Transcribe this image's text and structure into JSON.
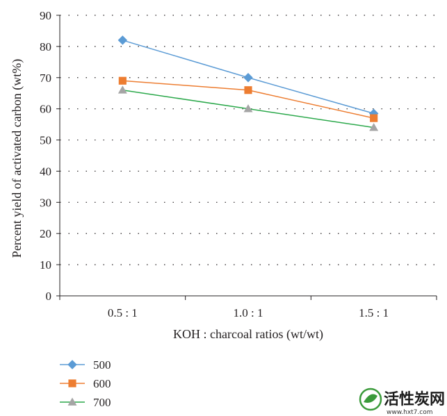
{
  "chart_data": {
    "type": "line",
    "categories": [
      "0.5 : 1",
      "1.0 : 1",
      "1.5 : 1"
    ],
    "series": [
      {
        "name": "500",
        "values": [
          82,
          70,
          58.5
        ],
        "color": "#5b9bd5",
        "marker": "diamond"
      },
      {
        "name": "600",
        "values": [
          69,
          66,
          57
        ],
        "color": "#ed7d31",
        "marker": "square"
      },
      {
        "name": "700",
        "values": [
          66,
          60,
          54
        ],
        "color": "#a5a5a5",
        "line_color": "#2aa84a",
        "marker": "triangle"
      }
    ],
    "xlabel": "KOH : charcoal ratios (wt/wt)",
    "ylabel": "Percent yield of activated carbon (wt%)",
    "ylim": [
      0,
      90
    ],
    "yticks": [
      "0",
      "10",
      "20",
      "30",
      "40",
      "50",
      "60",
      "70",
      "80",
      "90"
    ],
    "grid": "horizontal-dotted",
    "legend_position": "bottom-left"
  },
  "watermark": {
    "text": "活性炭网",
    "url": "www.hxt7.com"
  }
}
